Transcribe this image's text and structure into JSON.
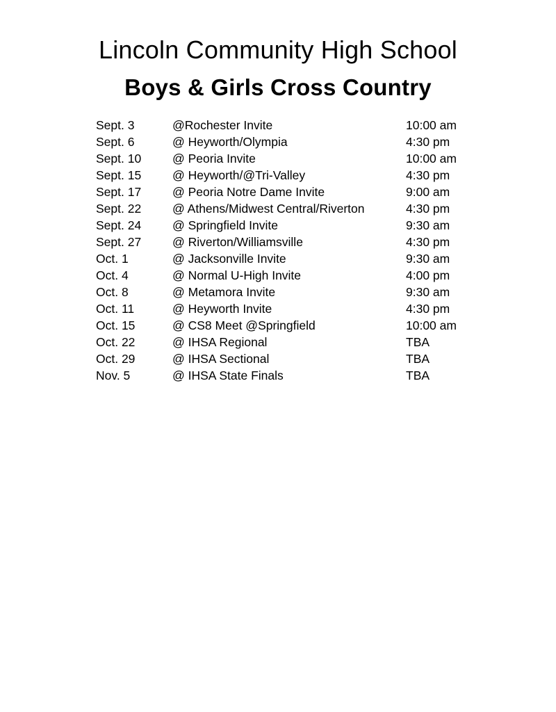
{
  "document": {
    "title": "Lincoln Community High School",
    "subtitle": "Boys & Girls Cross Country"
  },
  "schedule": {
    "rows": [
      {
        "date": "Sept. 3",
        "event": "@Rochester Invite",
        "time": "10:00 am"
      },
      {
        "date": "Sept. 6",
        "event": "@ Heyworth/Olympia",
        "time": "4:30 pm"
      },
      {
        "date": "Sept. 10",
        "event": "@ Peoria Invite",
        "time": "10:00 am"
      },
      {
        "date": "Sept. 15",
        "event": "@ Heyworth/@Tri-Valley",
        "time": "4:30 pm"
      },
      {
        "date": "Sept. 17",
        "event": "@ Peoria Notre Dame Invite",
        "time": "9:00 am"
      },
      {
        "date": "Sept. 22",
        "event": "@ Athens/Midwest Central/Riverton",
        "time": "4:30 pm"
      },
      {
        "date": "Sept. 24",
        "event": "@ Springfield Invite",
        "time": "9:30 am"
      },
      {
        "date": "Sept. 27",
        "event": "@ Riverton/Williamsville",
        "time": "4:30 pm"
      },
      {
        "date": "Oct. 1",
        "event": "@ Jacksonville Invite",
        "time": "9:30 am"
      },
      {
        "date": "Oct. 4",
        "event": "@ Normal U-High Invite",
        "time": "4:00 pm"
      },
      {
        "date": "Oct. 8",
        "event": "@ Metamora Invite",
        "time": "9:30 am"
      },
      {
        "date": "Oct. 11",
        "event": "@ Heyworth Invite",
        "time": "4:30 pm"
      },
      {
        "date": "Oct. 15",
        "event": "@ CS8 Meet @Springfield",
        "time": "10:00 am"
      },
      {
        "date": "Oct. 22",
        "event": "@ IHSA Regional",
        "time": "TBA"
      },
      {
        "date": "Oct. 29",
        "event": "@ IHSA Sectional",
        "time": "TBA"
      },
      {
        "date": "Nov. 5",
        "event": "@ IHSA State Finals",
        "time": "TBA"
      }
    ]
  }
}
